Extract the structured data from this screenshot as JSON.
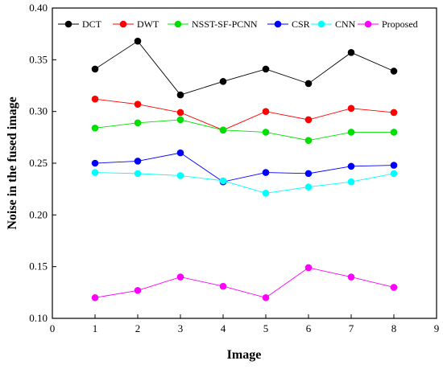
{
  "chart_data": {
    "type": "line",
    "xlabel": "Image",
    "ylabel": "Noise in the fused image",
    "xlim": [
      0,
      9
    ],
    "ylim": [
      0.1,
      0.4
    ],
    "x_ticks": [
      "0",
      "1",
      "2",
      "3",
      "4",
      "5",
      "6",
      "7",
      "8",
      "9"
    ],
    "y_ticks": [
      "0.10",
      "0.15",
      "0.20",
      "0.25",
      "0.30",
      "0.35",
      "0.40"
    ],
    "x": [
      1,
      2,
      3,
      4,
      5,
      6,
      7,
      8
    ],
    "legend_position": "top",
    "grid": false,
    "series": [
      {
        "name": "DCT",
        "color": "#000000",
        "values": [
          0.341,
          0.368,
          0.316,
          0.329,
          0.341,
          0.327,
          0.357,
          0.339
        ]
      },
      {
        "name": "DWT",
        "color": "#ff0000",
        "values": [
          0.312,
          0.307,
          0.299,
          0.282,
          0.3,
          0.292,
          0.303,
          0.299
        ]
      },
      {
        "name": "NSST-SF-PCNN",
        "color": "#00e000",
        "values": [
          0.284,
          0.289,
          0.292,
          0.282,
          0.28,
          0.272,
          0.28,
          0.28
        ]
      },
      {
        "name": "CSR",
        "color": "#0000ff",
        "values": [
          0.25,
          0.252,
          0.26,
          0.232,
          0.241,
          0.24,
          0.247,
          0.248
        ]
      },
      {
        "name": "CNN",
        "color": "#00ffff",
        "values": [
          0.241,
          0.24,
          0.238,
          0.233,
          0.221,
          0.227,
          0.232,
          0.24
        ]
      },
      {
        "name": "Proposed",
        "color": "#ff00ff",
        "values": [
          0.12,
          0.127,
          0.14,
          0.131,
          0.12,
          0.149,
          0.14,
          0.13
        ]
      }
    ]
  }
}
